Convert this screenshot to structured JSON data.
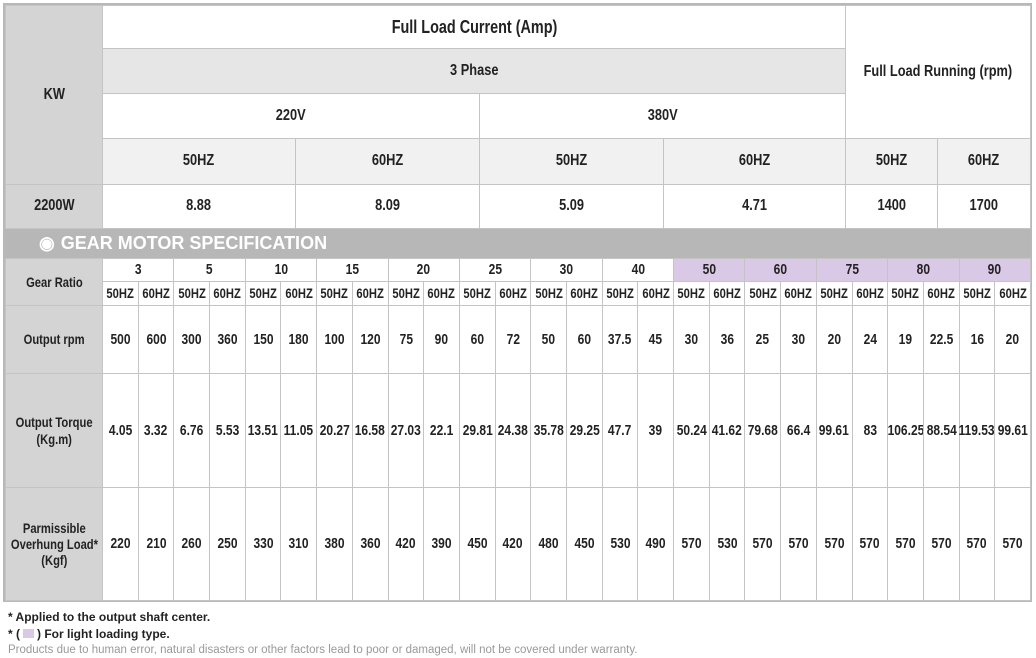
{
  "power_table": {
    "kw_header": "KW",
    "current_header": "Full Load Current (Amp)",
    "phase": "3 Phase",
    "voltages": [
      "220V",
      "380V"
    ],
    "frequencies": [
      "50HZ",
      "60HZ",
      "50HZ",
      "60HZ"
    ],
    "running_header": "Full Load Running (rpm)",
    "running_frequencies": [
      "50HZ",
      "60HZ"
    ],
    "kw": "2200W",
    "currents": [
      8.88,
      8.09,
      5.09,
      4.71
    ],
    "rpm": [
      1400,
      1700
    ]
  },
  "section_title": "GEAR MOTOR SPECIFICATION",
  "gear_table": {
    "ratio_label": "Gear Ratio",
    "ratios": [
      3,
      5,
      10,
      15,
      20,
      25,
      30,
      40,
      50,
      60,
      75,
      80,
      90
    ],
    "light_loading": [
      false,
      false,
      false,
      false,
      false,
      false,
      false,
      false,
      true,
      true,
      true,
      true,
      true
    ],
    "light_color": "#d9c9e6",
    "frequencies": [
      "50HZ",
      "60HZ",
      "50HZ",
      "60HZ",
      "50HZ",
      "60HZ",
      "50HZ",
      "60HZ",
      "50HZ",
      "60HZ",
      "50HZ",
      "60HZ",
      "50HZ",
      "60HZ",
      "50HZ",
      "60HZ",
      "50HZ",
      "60HZ",
      "50HZ",
      "60HZ",
      "50HZ",
      "60HZ",
      "50HZ",
      "60HZ",
      "50HZ",
      "60HZ"
    ],
    "rows": [
      {
        "label": [
          "Output rpm"
        ],
        "values": [
          500,
          600,
          300,
          360,
          150,
          180,
          100,
          120,
          75,
          90,
          60,
          72,
          50,
          60,
          37.5,
          45,
          30,
          36,
          25,
          30,
          20,
          24,
          19,
          22.5,
          16,
          20
        ]
      },
      {
        "label": [
          "Output Torque",
          "(Kg.m)"
        ],
        "values": [
          4.05,
          3.32,
          6.76,
          5.53,
          13.51,
          11.05,
          20.27,
          16.58,
          27.03,
          22.1,
          29.81,
          24.38,
          35.78,
          29.25,
          47.7,
          39,
          50.24,
          41.62,
          79.68,
          66.4,
          99.61,
          83,
          106.25,
          88.54,
          119.53,
          99.61
        ]
      },
      {
        "label": [
          "Parmissible",
          "Overhung Load*",
          "(Kgf)"
        ],
        "values": [
          220,
          210,
          260,
          250,
          330,
          310,
          380,
          360,
          420,
          390,
          450,
          420,
          480,
          450,
          530,
          490,
          570,
          530,
          570,
          570,
          570,
          570,
          570,
          570,
          570,
          570
        ]
      }
    ]
  },
  "footnotes": {
    "note1": "* Applied to the output shaft center.",
    "note2_start": "* (",
    "note2_end": ") For light loading type.",
    "disclaimer": "Products due to human error, natural disasters or other factors lead to poor or damaged, will not be covered under warranty."
  }
}
